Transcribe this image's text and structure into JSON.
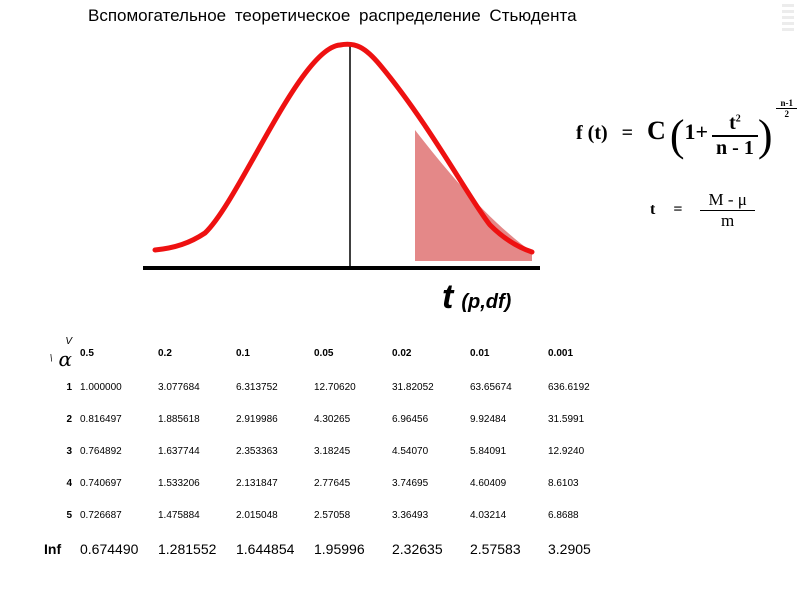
{
  "slide": {
    "title": "Вспомогательное теоретическое распределение Стьюдента"
  },
  "t_label": {
    "symbol": "t",
    "args": "(p,df)"
  },
  "formula1": {
    "lhs": "f (t)",
    "eq": "=",
    "const": "C",
    "one_plus": "1+",
    "num": "t",
    "num_exp": "2",
    "den": "n - 1",
    "exp_num": "n-1",
    "exp_den": "2"
  },
  "formula2": {
    "lhs": "t",
    "eq": "=",
    "num": "M - μ",
    "den": "m"
  },
  "table": {
    "corner_label": "V \\",
    "alpha_symbol": "α",
    "alphas": [
      "0.5",
      "0.2",
      "0.1",
      "0.05",
      "0.02",
      "0.01",
      "0.001"
    ],
    "rows": [
      {
        "df": "1",
        "values": [
          "1.000000",
          "3.077684",
          "6.313752",
          "12.70620",
          "31.82052",
          "63.65674",
          "636.6192"
        ]
      },
      {
        "df": "2",
        "values": [
          "0.816497",
          "1.885618",
          "2.919986",
          "4.30265",
          "6.96456",
          "9.92484",
          "31.5991"
        ]
      },
      {
        "df": "3",
        "values": [
          "0.764892",
          "1.637744",
          "2.353363",
          "3.18245",
          "4.54070",
          "5.84091",
          "12.9240"
        ]
      },
      {
        "df": "4",
        "values": [
          "0.740697",
          "1.533206",
          "2.131847",
          "2.77645",
          "3.74695",
          "4.60409",
          "8.6103"
        ]
      },
      {
        "df": "5",
        "values": [
          "0.726687",
          "1.475884",
          "2.015048",
          "2.57058",
          "3.36493",
          "4.03214",
          "6.8688"
        ]
      }
    ],
    "inf_row": {
      "df": "Inf",
      "values": [
        "0.674490",
        "1.281552",
        "1.644854",
        "1.95996",
        "2.32635",
        "2.57583",
        "3.2905"
      ]
    }
  },
  "colors": {
    "curve": "#ee1111",
    "tail_fill": "#e48888",
    "axis": "#000000"
  }
}
